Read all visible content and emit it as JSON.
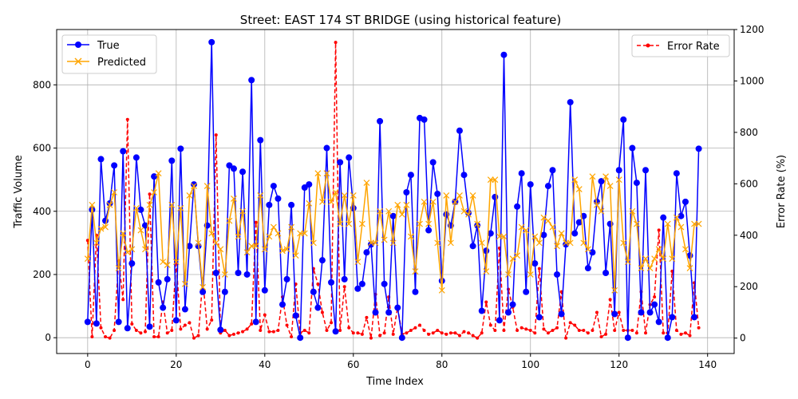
{
  "chart_data": {
    "type": "line",
    "title": "Street: EAST 174 ST BRIDGE (using historical feature)",
    "xlabel": "Time Index",
    "ylabel": "Traffic Volume",
    "y2label": "Error Rate (%)",
    "xlim": [
      -7,
      146
    ],
    "ylim": [
      -50,
      975
    ],
    "y2lim": [
      -60,
      1200
    ],
    "xticks": [
      0,
      20,
      40,
      60,
      80,
      100,
      120,
      140
    ],
    "yticks": [
      0,
      200,
      400,
      600,
      800
    ],
    "y2ticks": [
      0,
      200,
      400,
      600,
      800,
      1000,
      1200
    ],
    "grid": true,
    "legend_left": [
      "True",
      "Predicted"
    ],
    "legend_right": [
      "Error Rate"
    ],
    "colors": {
      "true": "#0000ff",
      "predicted": "#ffa500",
      "error": "#ff0000"
    },
    "series": [
      {
        "name": "True",
        "axis": "left",
        "values": [
          50,
          405,
          45,
          565,
          370,
          425,
          545,
          50,
          590,
          30,
          235,
          570,
          405,
          355,
          35,
          510,
          175,
          95,
          185,
          560,
          55,
          598,
          90,
          290,
          485,
          290,
          145,
          355,
          935,
          205,
          25,
          145,
          545,
          535,
          205,
          525,
          200,
          815,
          50,
          625,
          150,
          420,
          480,
          440,
          105,
          185,
          420,
          70,
          0,
          475,
          485,
          145,
          95,
          245,
          600,
          175,
          20,
          555,
          185,
          570,
          410,
          155,
          170,
          270,
          295,
          80,
          685,
          170,
          80,
          385,
          95,
          0,
          460,
          515,
          145,
          695,
          690,
          340,
          555,
          455,
          180,
          390,
          355,
          430,
          655,
          515,
          395,
          290,
          355,
          85,
          275,
          330,
          445,
          55,
          895,
          80,
          105,
          415,
          520,
          145,
          485,
          235,
          65,
          325,
          480,
          530,
          200,
          75,
          295,
          745,
          330,
          365,
          385,
          220,
          270,
          430,
          495,
          205,
          360,
          75,
          530,
          690,
          0,
          600,
          490,
          80,
          530,
          80,
          105,
          50,
          380,
          0,
          65,
          520,
          385,
          430,
          260,
          65,
          598
        ],
        "marker": "circle"
      },
      {
        "name": "Predicted",
        "axis": "left",
        "values": [
          250,
          420,
          300,
          345,
          350,
          420,
          460,
          220,
          330,
          270,
          280,
          410,
          340,
          280,
          420,
          460,
          520,
          240,
          230,
          420,
          240,
          410,
          170,
          450,
          480,
          300,
          160,
          480,
          330,
          300,
          280,
          200,
          370,
          440,
          320,
          400,
          270,
          290,
          290,
          450,
          280,
          320,
          350,
          330,
          275,
          280,
          350,
          260,
          330,
          330,
          425,
          300,
          520,
          430,
          520,
          430,
          460,
          360,
          450,
          360,
          450,
          240,
          360,
          490,
          300,
          300,
          400,
          310,
          400,
          300,
          420,
          390,
          420,
          320,
          210,
          360,
          430,
          360,
          430,
          300,
          150,
          450,
          300,
          430,
          450,
          400,
          390,
          450,
          360,
          300,
          210,
          500,
          500,
          320,
          320,
          200,
          250,
          260,
          350,
          340,
          200,
          320,
          300,
          380,
          370,
          350,
          290,
          330,
          300,
          300,
          500,
          470,
          300,
          280,
          510,
          420,
          400,
          510,
          480,
          150,
          500,
          300,
          240,
          400,
          360,
          220,
          250,
          220,
          250,
          280,
          250,
          360,
          250,
          380,
          350,
          280,
          220,
          360,
          360
        ],
        "marker": "x"
      },
      {
        "name": "Error Rate",
        "axis": "right",
        "values": [
          380,
          5,
          400,
          40,
          5,
          0,
          30,
          300,
          150,
          850,
          55,
          30,
          20,
          25,
          560,
          5,
          5,
          140,
          20,
          30,
          300,
          35,
          50,
          60,
          0,
          10,
          230,
          35,
          70,
          790,
          20,
          30,
          10,
          15,
          20,
          25,
          35,
          55,
          450,
          30,
          90,
          25,
          25,
          30,
          160,
          50,
          5,
          210,
          20,
          30,
          20,
          270,
          210,
          100,
          30,
          60,
          1150,
          30,
          200,
          40,
          20,
          20,
          15,
          80,
          0,
          170,
          10,
          20,
          160,
          15,
          120,
          15,
          20,
          30,
          40,
          50,
          30,
          15,
          20,
          30,
          20,
          15,
          20,
          20,
          10,
          25,
          20,
          10,
          0,
          20,
          140,
          50,
          30,
          350,
          30,
          190,
          120,
          30,
          40,
          35,
          30,
          20,
          270,
          35,
          20,
          30,
          40,
          180,
          0,
          60,
          50,
          30,
          30,
          20,
          30,
          100,
          5,
          15,
          150,
          30,
          100,
          30,
          30,
          30,
          20,
          180,
          20,
          130,
          160,
          420,
          20,
          20,
          260,
          30,
          15,
          20,
          10,
          215,
          40
        ]
      }
    ]
  }
}
